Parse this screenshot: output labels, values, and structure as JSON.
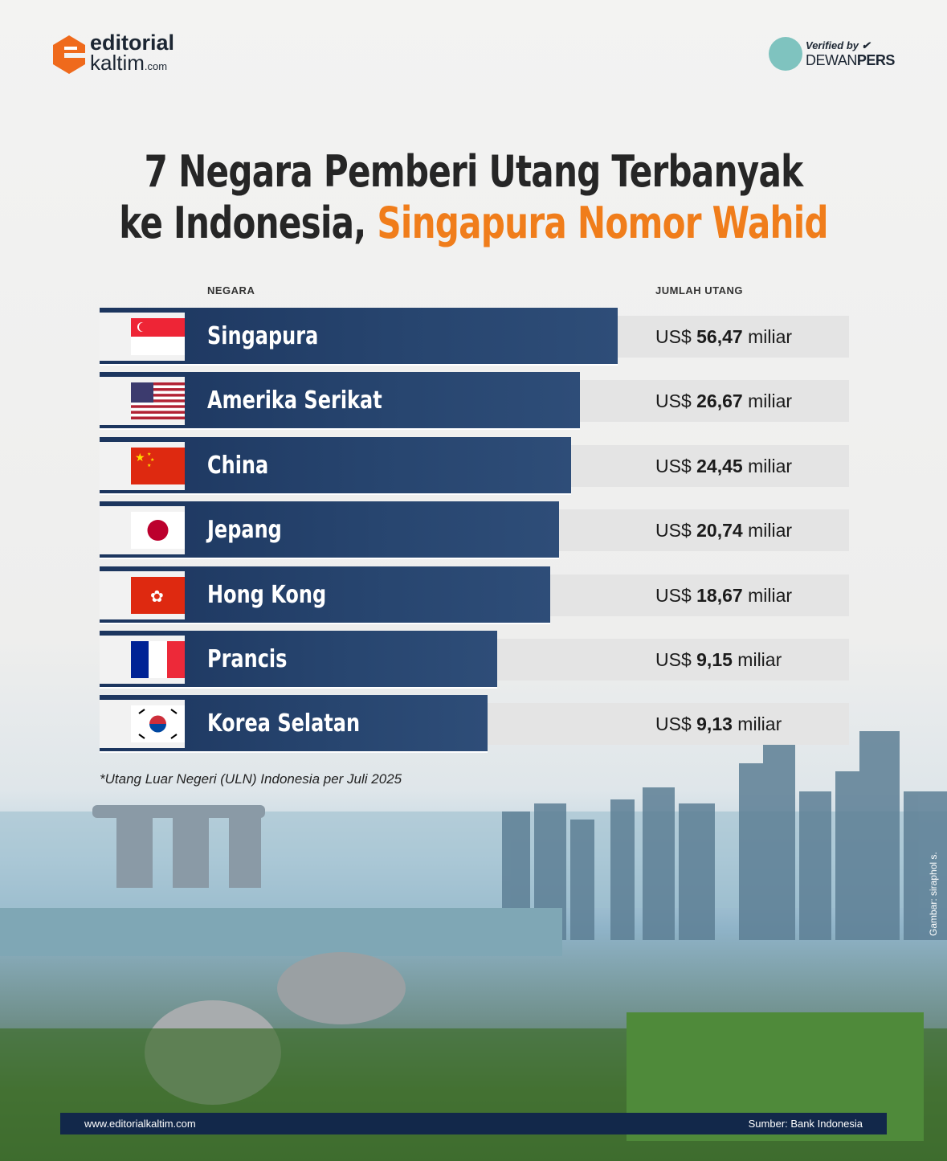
{
  "brand": {
    "logo_line1": "editorial",
    "logo_line2": "kaltim",
    "logo_suffix": ".com",
    "verified_line1": "Verified by",
    "verified_line2a": "DEWAN",
    "verified_line2b": "PERS"
  },
  "title": {
    "line1": "7 Negara Pemberi Utang Terbanyak",
    "line2_plain": "ke Indonesia, ",
    "line2_highlight": "Singapura Nomor Wahid"
  },
  "colors": {
    "bar": "#1c355e",
    "highlight": "#f07d1b",
    "value_box": "#e4e4e4",
    "footer": "#12284a"
  },
  "chart_data": {
    "type": "bar",
    "orientation": "horizontal",
    "column_headers": {
      "country": "NEGARA",
      "amount": "JUMLAH UTANG"
    },
    "unit_prefix": "US$",
    "unit_suffix": "miliar",
    "categories": [
      "Singapura",
      "Amerika Serikat",
      "China",
      "Jepang",
      "Hong Kong",
      "Prancis",
      "Korea Selatan"
    ],
    "values": [
      56.47,
      26.67,
      24.45,
      20.74,
      18.67,
      9.15,
      9.13
    ],
    "value_labels": [
      "56,47",
      "26,67",
      "24,45",
      "20,74",
      "18,67",
      "9,15",
      "9,13"
    ],
    "flags": [
      "singapore-flag",
      "usa-flag",
      "china-flag",
      "japan-flag",
      "hong-kong-flag",
      "france-flag",
      "south-korea-flag"
    ]
  },
  "note": "*Utang Luar Negeri (ULN) Indonesia per Juli 2025",
  "footer": {
    "website": "www.editorialkaltim.com",
    "source": "Sumber: Bank Indonesia"
  },
  "image_credit": "Gambar: siraphol s."
}
